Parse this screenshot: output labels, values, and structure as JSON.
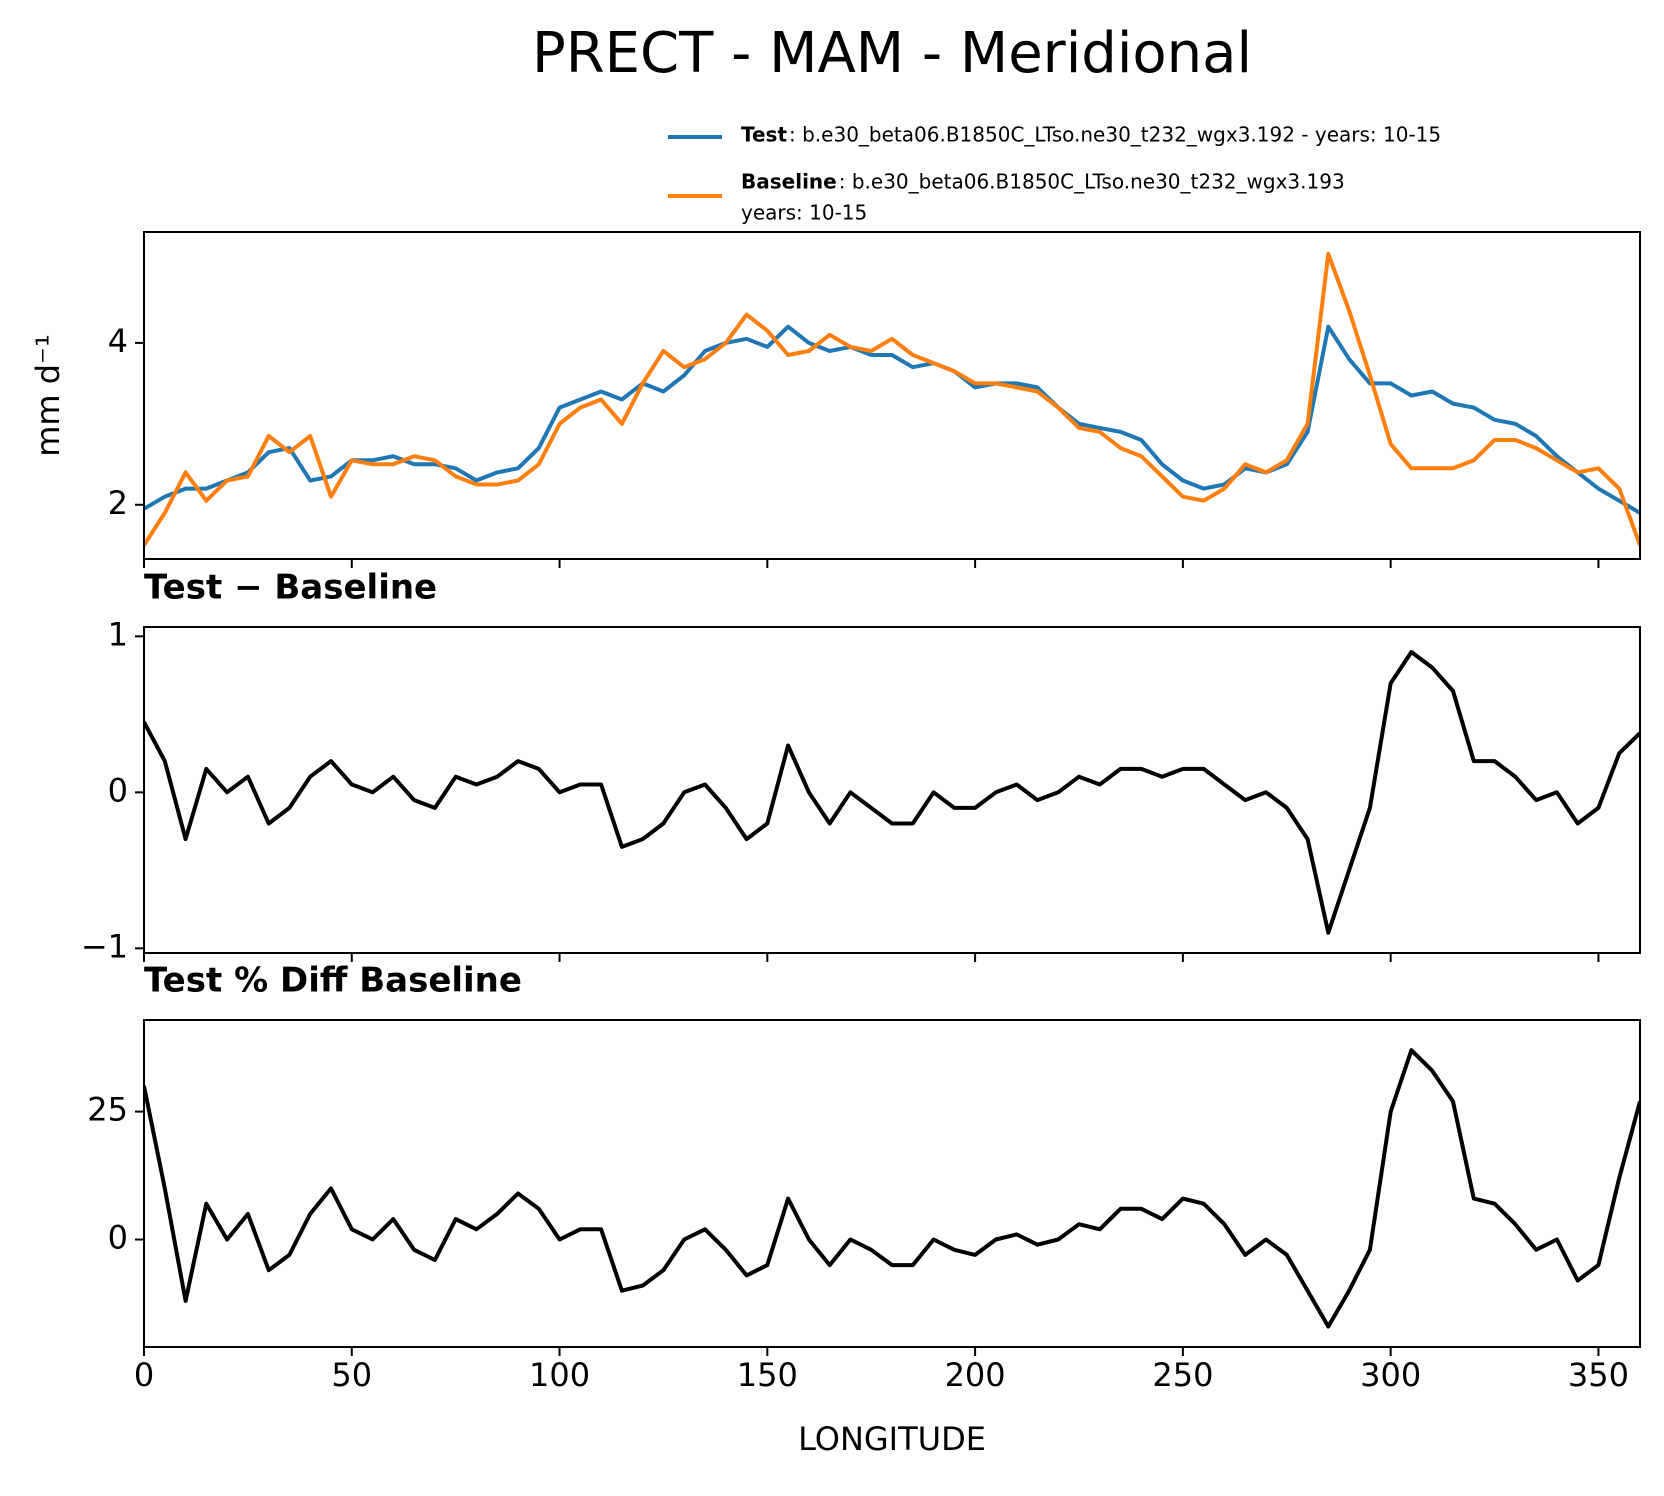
{
  "title": "PRECT - MAM - Meridional",
  "chart_data": [
    {
      "type": "line",
      "ylabel": "mm d⁻¹",
      "xlim": [
        0,
        360
      ],
      "xticks": [
        0,
        50,
        100,
        150,
        200,
        250,
        300,
        350
      ],
      "ylim": [
        1.33,
        5.37
      ],
      "yticks": [
        2,
        4
      ],
      "x": [
        0,
        5,
        10,
        15,
        20,
        25,
        30,
        35,
        40,
        45,
        50,
        55,
        60,
        65,
        70,
        75,
        80,
        85,
        90,
        95,
        100,
        105,
        110,
        115,
        120,
        125,
        130,
        135,
        140,
        145,
        150,
        155,
        160,
        165,
        170,
        175,
        180,
        185,
        190,
        195,
        200,
        205,
        210,
        215,
        220,
        225,
        230,
        235,
        240,
        245,
        250,
        255,
        260,
        265,
        270,
        275,
        280,
        285,
        290,
        295,
        300,
        305,
        310,
        315,
        320,
        325,
        330,
        335,
        340,
        345,
        350,
        355,
        360
      ],
      "series": [
        {
          "name": "Test",
          "label_lines": [
            ": b.e30_beta06.B1850C_LTso.ne30_t232_wgx3.192 - years: 10-15"
          ],
          "color": "#1f77b4",
          "values": [
            1.95,
            2.1,
            2.2,
            2.2,
            2.3,
            2.4,
            2.65,
            2.7,
            2.3,
            2.35,
            2.55,
            2.55,
            2.6,
            2.5,
            2.5,
            2.45,
            2.3,
            2.4,
            2.45,
            2.7,
            3.2,
            3.3,
            3.4,
            3.3,
            3.5,
            3.4,
            3.6,
            3.9,
            4.0,
            4.05,
            3.95,
            4.2,
            4.0,
            3.9,
            3.95,
            3.85,
            3.85,
            3.7,
            3.75,
            3.65,
            3.45,
            3.5,
            3.5,
            3.45,
            3.2,
            3.0,
            2.95,
            2.9,
            2.8,
            2.5,
            2.3,
            2.2,
            2.25,
            2.45,
            2.4,
            2.5,
            2.9,
            4.2,
            3.8,
            3.5,
            3.5,
            3.35,
            3.4,
            3.25,
            3.2,
            3.05,
            3.0,
            2.85,
            2.6,
            2.4,
            2.2,
            2.05,
            1.9
          ]
        },
        {
          "name": "Baseline",
          "label_lines": [
            ": b.e30_beta06.B1850C_LTso.ne30_t232_wgx3.193",
            "years: 10-15"
          ],
          "color": "#ff7f0e",
          "values": [
            1.5,
            1.9,
            2.4,
            2.05,
            2.3,
            2.35,
            2.85,
            2.65,
            2.85,
            2.1,
            2.55,
            2.5,
            2.5,
            2.6,
            2.55,
            2.35,
            2.25,
            2.25,
            2.3,
            2.5,
            3.0,
            3.2,
            3.3,
            3.0,
            3.5,
            3.9,
            3.7,
            3.8,
            4.0,
            4.35,
            4.15,
            3.85,
            3.9,
            4.1,
            3.95,
            3.9,
            4.05,
            3.85,
            3.75,
            3.65,
            3.5,
            3.5,
            3.45,
            3.4,
            3.2,
            2.95,
            2.9,
            2.7,
            2.6,
            2.35,
            2.1,
            2.05,
            2.2,
            2.5,
            2.4,
            2.55,
            3.0,
            5.1,
            4.4,
            3.6,
            2.75,
            2.45,
            2.45,
            2.45,
            2.55,
            2.8,
            2.8,
            2.7,
            2.55,
            2.4,
            2.45,
            2.2,
            1.5
          ]
        }
      ]
    },
    {
      "type": "line",
      "title": "Test − Baseline",
      "xlim": [
        0,
        360
      ],
      "xticks": [
        0,
        50,
        100,
        150,
        200,
        250,
        300,
        350
      ],
      "ylim": [
        -1.03,
        1.06
      ],
      "yticks": [
        {
          "value": -1,
          "label": "−1"
        },
        0,
        1
      ],
      "x": [
        0,
        5,
        10,
        15,
        20,
        25,
        30,
        35,
        40,
        45,
        50,
        55,
        60,
        65,
        70,
        75,
        80,
        85,
        90,
        95,
        100,
        105,
        110,
        115,
        120,
        125,
        130,
        135,
        140,
        145,
        150,
        155,
        160,
        165,
        170,
        175,
        180,
        185,
        190,
        195,
        200,
        205,
        210,
        215,
        220,
        225,
        230,
        235,
        240,
        245,
        250,
        255,
        260,
        265,
        270,
        275,
        280,
        285,
        290,
        295,
        300,
        305,
        310,
        315,
        320,
        325,
        330,
        335,
        340,
        345,
        350,
        355,
        360
      ],
      "series": [
        {
          "color": "#000000",
          "values": [
            0.45,
            0.2,
            -0.3,
            0.15,
            0.0,
            0.1,
            -0.2,
            -0.1,
            0.1,
            0.2,
            0.05,
            0.0,
            0.1,
            -0.05,
            -0.1,
            0.1,
            0.05,
            0.1,
            0.2,
            0.15,
            0.0,
            0.05,
            0.05,
            -0.35,
            -0.3,
            -0.2,
            0.0,
            0.05,
            -0.1,
            -0.3,
            -0.2,
            0.3,
            0.0,
            -0.2,
            0.0,
            -0.1,
            -0.2,
            -0.2,
            0.0,
            -0.1,
            -0.1,
            0.0,
            0.05,
            -0.05,
            0.0,
            0.1,
            0.05,
            0.15,
            0.15,
            0.1,
            0.15,
            0.15,
            0.05,
            -0.05,
            0.0,
            -0.1,
            -0.3,
            -0.9,
            -0.5,
            -0.1,
            0.7,
            0.9,
            0.8,
            0.65,
            0.2,
            0.2,
            0.1,
            -0.05,
            0.0,
            -0.2,
            -0.1,
            0.25,
            0.38
          ]
        }
      ]
    },
    {
      "type": "line",
      "title": "Test % Diff Baseline",
      "xlabel": "LONGITUDE",
      "xlim": [
        0,
        360
      ],
      "xticks": [
        0,
        50,
        100,
        150,
        200,
        250,
        300,
        350
      ],
      "ylim": [
        -21,
        42.9
      ],
      "yticks": [
        0,
        25
      ],
      "x": [
        0,
        5,
        10,
        15,
        20,
        25,
        30,
        35,
        40,
        45,
        50,
        55,
        60,
        65,
        70,
        75,
        80,
        85,
        90,
        95,
        100,
        105,
        110,
        115,
        120,
        125,
        130,
        135,
        140,
        145,
        150,
        155,
        160,
        165,
        170,
        175,
        180,
        185,
        190,
        195,
        200,
        205,
        210,
        215,
        220,
        225,
        230,
        235,
        240,
        245,
        250,
        255,
        260,
        265,
        270,
        275,
        280,
        285,
        290,
        295,
        300,
        305,
        310,
        315,
        320,
        325,
        330,
        335,
        340,
        345,
        350,
        355,
        360
      ],
      "series": [
        {
          "color": "#000000",
          "values": [
            30,
            10,
            -12,
            7,
            0,
            5,
            -6,
            -3,
            5,
            10,
            2,
            0,
            4,
            -2,
            -4,
            4,
            2,
            5,
            9,
            6,
            0,
            2,
            2,
            -10,
            -9,
            -6,
            0,
            2,
            -2,
            -7,
            -5,
            8,
            0,
            -5,
            0,
            -2,
            -5,
            -5,
            0,
            -2,
            -3,
            0,
            1,
            -1,
            0,
            3,
            2,
            6,
            6,
            4,
            8,
            7,
            3,
            -3,
            0,
            -3,
            -10,
            -17,
            -10,
            -2,
            25,
            37,
            33,
            27,
            8,
            7,
            3,
            -2,
            0,
            -8,
            -5,
            12,
            27
          ]
        }
      ]
    }
  ]
}
